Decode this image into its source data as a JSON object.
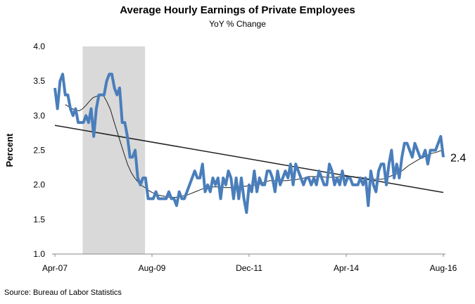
{
  "chart_data": {
    "type": "line",
    "title": "Average Hourly Earnings of Private Employees",
    "subtitle": "YoY % Change",
    "ylabel": "Percent",
    "source": "Source: Bureau of Labor Statistics",
    "ylim": [
      1.0,
      4.0
    ],
    "yticks": [
      "1.0",
      "1.5",
      "2.0",
      "2.5",
      "3.0",
      "3.5",
      "4.0"
    ],
    "xticks": [
      "Apr-07",
      "Aug-09",
      "Dec-11",
      "Apr-14",
      "Aug-16"
    ],
    "end_label": "2.4",
    "colors": {
      "main": "#4a7ebb",
      "recession": "#d9d9d9",
      "trend": "#222222"
    },
    "recession_shade": {
      "start": "Dec-07",
      "end": "Jun-09"
    },
    "series": [
      {
        "values": [
          3.4,
          3.1,
          3.5,
          3.6,
          3.3,
          3.3,
          3.1,
          3.0,
          3.1,
          2.9,
          2.9,
          2.9,
          3.0,
          2.9,
          3.1,
          2.7,
          3.1,
          3.3,
          3.3,
          3.3,
          3.5,
          3.6,
          3.6,
          3.4,
          3.3,
          3.4,
          2.9,
          2.9,
          2.7,
          2.4,
          2.4,
          2.5,
          2.1,
          2.0,
          2.1,
          2.1,
          1.8,
          1.8,
          1.8,
          1.9,
          1.8,
          1.8,
          1.8,
          1.8,
          1.9,
          1.8,
          1.8,
          1.7,
          1.9,
          1.8,
          1.8,
          1.9,
          2.0,
          2.1,
          2.2,
          2.1,
          2.1,
          2.3,
          1.9,
          2.0,
          1.9,
          2.1,
          2.0,
          2.1,
          1.8,
          2.1,
          2.0,
          2.2,
          2.1,
          1.8,
          2.1,
          1.8,
          2.1,
          1.8,
          1.6,
          2.0,
          1.9,
          2.2,
          1.9,
          2.1,
          2.0,
          2.0,
          2.2,
          2.2,
          2.1,
          1.9,
          2.2,
          2.0,
          2.1,
          2.2,
          2.1,
          2.3,
          2.0,
          2.3,
          2.2,
          2.1,
          2.0,
          2.1,
          2.1,
          2.0,
          2.1,
          2.0,
          2.2,
          2.1,
          2.0,
          2.0,
          2.3,
          2.2,
          2.0,
          2.1,
          2.0,
          2.2,
          2.0,
          2.1,
          2.1,
          2.0,
          2.0,
          2.0,
          2.1,
          2.0,
          2.1,
          1.7,
          2.2,
          2.0,
          1.9,
          2.2,
          2.3,
          2.3,
          2.0,
          2.3,
          2.5,
          2.1,
          2.3,
          2.1,
          2.4,
          2.6,
          2.6,
          2.5,
          2.4,
          2.6,
          2.5,
          2.4,
          2.4,
          2.5,
          2.3,
          2.5,
          2.5,
          2.5,
          2.6,
          2.7,
          2.4
        ]
      },
      {
        "values": [
          3.16,
          3.13,
          3.1,
          3.08,
          3.07,
          3.1,
          3.15,
          3.21,
          3.26,
          3.28,
          3.3,
          3.29,
          3.2,
          3.09,
          2.92,
          2.76,
          2.6,
          2.44,
          2.29,
          2.18,
          2.1,
          2.04,
          1.99,
          1.96,
          1.92,
          1.89,
          1.87,
          1.85,
          1.84,
          1.83,
          1.82,
          1.82,
          1.82,
          1.83,
          1.84,
          1.85,
          1.87,
          1.89,
          1.91,
          1.93,
          1.95,
          1.96,
          1.97,
          1.97,
          1.97,
          1.97,
          1.96,
          1.96,
          1.96,
          1.96,
          1.97,
          1.98,
          1.98,
          1.99,
          1.99,
          2.0,
          2.01,
          2.03,
          2.05,
          2.06,
          2.06,
          2.06,
          2.06,
          2.06,
          2.06,
          2.07,
          2.07,
          2.08,
          2.09,
          2.1,
          2.12,
          2.12,
          2.12,
          2.12,
          2.12,
          2.11,
          2.11,
          2.11,
          2.11,
          2.12,
          2.12,
          2.12,
          2.12,
          2.12,
          2.11,
          2.11,
          2.1,
          2.09,
          2.08,
          2.08,
          2.08,
          2.08,
          2.09,
          2.11,
          2.13,
          2.15,
          2.17,
          2.2,
          2.24,
          2.28,
          2.31,
          2.34,
          2.37,
          2.39,
          2.42,
          2.44,
          2.46,
          2.47,
          2.49,
          2.5
        ]
      },
      {
        "values": [
          2.86,
          1.89
        ]
      }
    ]
  }
}
